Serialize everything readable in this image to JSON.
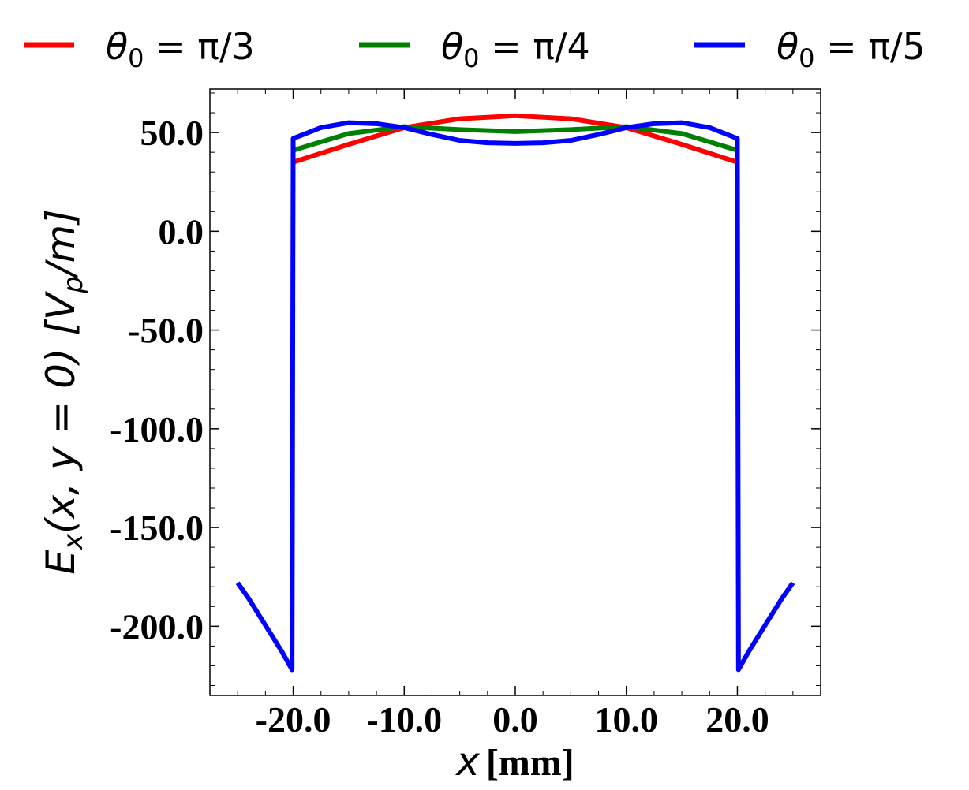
{
  "chart_data": {
    "type": "line",
    "xlim": [
      -27.5,
      27.5
    ],
    "ylim": [
      -235,
      72
    ],
    "x_ticks": [
      -20,
      -10,
      0,
      10,
      20
    ],
    "x_tick_labels": [
      "-20.0",
      "-10.0",
      "0.0",
      "10.0",
      "20.0"
    ],
    "y_ticks": [
      50,
      0,
      -50,
      -100,
      -150,
      -200
    ],
    "y_tick_labels": [
      "50.0",
      "0.0",
      "-50.0",
      "-100.0",
      "-150.0",
      "-200.0"
    ],
    "xlabel": {
      "var": "x",
      "unit": "[mm]"
    },
    "ylabel": {
      "main": "E",
      "sub": "x",
      "args": "(x, y = 0) [",
      "unit_main": "V",
      "unit_sub": "p",
      "unit_tail": "/m]"
    },
    "legend_position": "top",
    "grid": false,
    "series": [
      {
        "name": "θ0 = π/3",
        "name_parts": {
          "sym": "θ",
          "sub": "0",
          "rest": " = π/3"
        },
        "color": "#ff0000",
        "x": [
          -20,
          -15,
          -10,
          -5,
          0,
          5,
          10,
          15,
          20
        ],
        "y": [
          35,
          44,
          52.5,
          57,
          58.5,
          57,
          52.5,
          44,
          35
        ]
      },
      {
        "name": "θ0 = π/4",
        "name_parts": {
          "sym": "θ",
          "sub": "0",
          "rest": " = π/4"
        },
        "color": "#008000",
        "x": [
          -20,
          -15,
          -10,
          -5,
          0,
          5,
          10,
          15,
          20
        ],
        "y": [
          41,
          49.5,
          53,
          51.5,
          50.5,
          51.5,
          53,
          49.5,
          41
        ]
      },
      {
        "name": "θ0 = π/5",
        "name_parts": {
          "sym": "θ",
          "sub": "0",
          "rest": " = π/5"
        },
        "color": "#0000ff",
        "x": [
          -25,
          -24,
          -23,
          -22,
          -21,
          -20.1,
          -20,
          -17.5,
          -15,
          -12.5,
          -10,
          -7.5,
          -5,
          -2.5,
          0,
          2.5,
          5,
          7.5,
          10,
          12.5,
          15,
          17.5,
          20,
          20.1,
          21,
          22,
          23,
          24,
          25
        ],
        "y": [
          -178,
          -186,
          -195,
          -204,
          -213,
          -222,
          47,
          52.5,
          55,
          54.5,
          52.5,
          49,
          46,
          44.8,
          44.5,
          44.8,
          46,
          49,
          52.5,
          54.5,
          55,
          52.5,
          47,
          -222,
          -213,
          -204,
          -195,
          -186,
          -178
        ]
      }
    ]
  }
}
